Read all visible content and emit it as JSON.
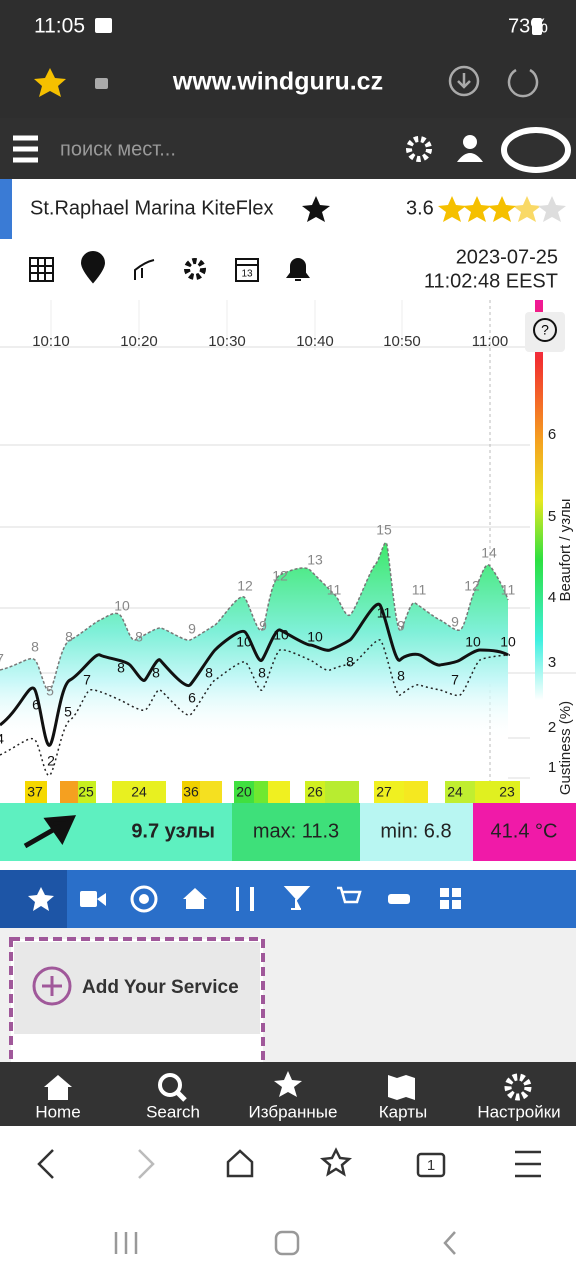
{
  "status": {
    "time": "11:05",
    "battery": "73%"
  },
  "browser": {
    "url": "www.windguru.cz",
    "tab_count": "1"
  },
  "site_nav": {
    "search_placeholder": "поиск мест..."
  },
  "station": {
    "name": "St.Raphael Marina KiteFlex",
    "rating": "3.6"
  },
  "toolbar": {
    "calendar_day": "13"
  },
  "timestamp": {
    "date": "2023-07-25",
    "time": "11:02:48 EEST"
  },
  "chart": {
    "help": "?",
    "times": [
      "10:10",
      "10:20",
      "10:30",
      "10:40",
      "10:50",
      "11:00"
    ],
    "axis_label": "Beaufort / узлы",
    "gust_axis_label": "Gustiness (%)",
    "beaufort_ticks": [
      6,
      5,
      4,
      3,
      2,
      1
    ],
    "gust_labels": [
      7,
      8,
      5,
      8,
      10,
      8,
      9,
      12,
      9,
      12,
      13,
      11,
      15,
      9,
      11,
      9,
      12,
      14,
      11
    ],
    "mean_labels": [
      4,
      6,
      2,
      5,
      7,
      8,
      8,
      6,
      8,
      10,
      8,
      10,
      10,
      8,
      11,
      8,
      7,
      10,
      10
    ],
    "gustiness": [
      37,
      25,
      24,
      36,
      20,
      26,
      27,
      24,
      23
    ]
  },
  "summary": {
    "speed": "9.7 узлы",
    "max": "max: 11.3",
    "min": "min: 6.8",
    "temperature": "41.4 °C"
  },
  "service": {
    "label": "Add Your Service"
  },
  "bottom_nav": [
    "Home",
    "Search",
    "Избранные",
    "Карты",
    "Настройки"
  ]
}
